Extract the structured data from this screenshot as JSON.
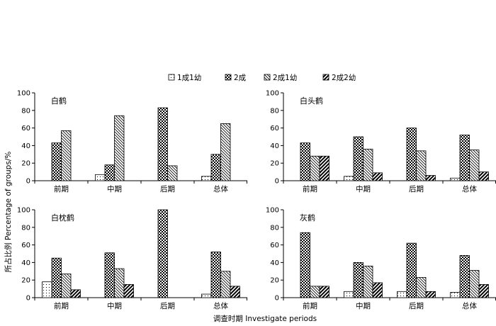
{
  "legend": {
    "entries": [
      "1成1幼",
      "2成",
      "2成1幼",
      "2成2幼"
    ]
  },
  "axes": {
    "ylabel": "所占比例 Percentage of groups/%",
    "xlabel": "调查时期 Investigate periods"
  },
  "colors": {
    "bar_stroke": "#000000",
    "background": "#ffffff"
  },
  "chart_data": [
    {
      "type": "bar",
      "title": "白鹤",
      "categories": [
        "前期",
        "中期",
        "后期",
        "总体"
      ],
      "series": [
        {
          "name": "1成1幼",
          "pattern": "dots",
          "values": [
            0,
            7,
            0,
            5
          ]
        },
        {
          "name": "2成",
          "pattern": "crosshatch",
          "values": [
            43,
            18,
            83,
            30
          ]
        },
        {
          "name": "2成1幼",
          "pattern": "diagonal-thin",
          "values": [
            57,
            74,
            17,
            65
          ]
        },
        {
          "name": "2成2幼",
          "pattern": "diagonal-bold",
          "values": [
            0,
            0,
            0,
            0
          ]
        }
      ],
      "ylim": [
        0,
        100
      ],
      "yticks": [
        0,
        20,
        40,
        60,
        80,
        100
      ]
    },
    {
      "type": "bar",
      "title": "白头鹤",
      "categories": [
        "前期",
        "中期",
        "后期",
        "总体"
      ],
      "series": [
        {
          "name": "1成1幼",
          "pattern": "dots",
          "values": [
            0,
            5,
            0,
            3
          ]
        },
        {
          "name": "2成",
          "pattern": "crosshatch",
          "values": [
            43,
            50,
            60,
            52
          ]
        },
        {
          "name": "2成1幼",
          "pattern": "diagonal-thin",
          "values": [
            28,
            36,
            34,
            35
          ]
        },
        {
          "name": "2成2幼",
          "pattern": "diagonal-bold",
          "values": [
            28,
            9,
            6,
            10
          ]
        }
      ],
      "ylim": [
        0,
        100
      ],
      "yticks": [
        0,
        20,
        40,
        60,
        80,
        100
      ]
    },
    {
      "type": "bar",
      "title": "白枕鹤",
      "categories": [
        "前期",
        "中期",
        "后期",
        "总体"
      ],
      "series": [
        {
          "name": "1成1幼",
          "pattern": "dots",
          "values": [
            18,
            0,
            0,
            4
          ]
        },
        {
          "name": "2成",
          "pattern": "crosshatch",
          "values": [
            45,
            51,
            100,
            52
          ]
        },
        {
          "name": "2成1幼",
          "pattern": "diagonal-thin",
          "values": [
            27,
            33,
            0,
            30
          ]
        },
        {
          "name": "2成2幼",
          "pattern": "diagonal-bold",
          "values": [
            9,
            15,
            0,
            13
          ]
        }
      ],
      "ylim": [
        0,
        100
      ],
      "yticks": [
        0,
        20,
        40,
        60,
        80,
        100
      ]
    },
    {
      "type": "bar",
      "title": "灰鹤",
      "categories": [
        "前期",
        "中期",
        "后期",
        "总体"
      ],
      "series": [
        {
          "name": "1成1幼",
          "pattern": "dots",
          "values": [
            0,
            7,
            7,
            6
          ]
        },
        {
          "name": "2成",
          "pattern": "crosshatch",
          "values": [
            74,
            40,
            62,
            48
          ]
        },
        {
          "name": "2成1幼",
          "pattern": "diagonal-thin",
          "values": [
            13,
            36,
            23,
            31
          ]
        },
        {
          "name": "2成2幼",
          "pattern": "diagonal-bold",
          "values": [
            13,
            17,
            7,
            15
          ]
        }
      ],
      "ylim": [
        0,
        100
      ],
      "yticks": [
        0,
        20,
        40,
        60,
        80,
        100
      ]
    }
  ]
}
